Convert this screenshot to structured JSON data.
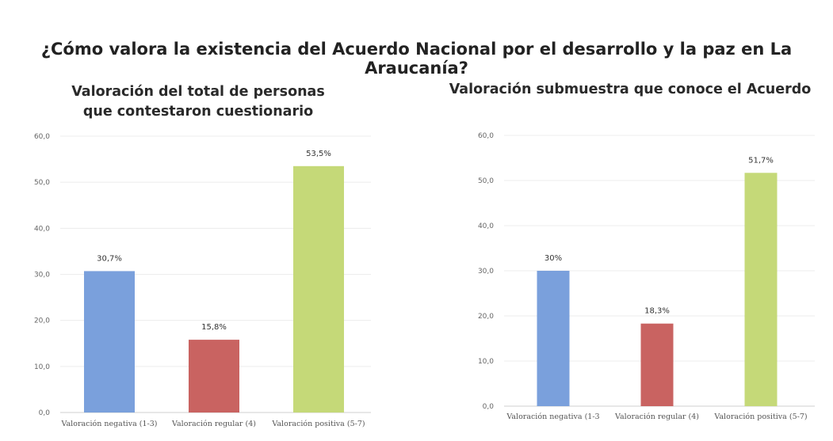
{
  "title": "¿Cómo valora la existencia del Acuerdo Nacional por el desarrollo y la paz en La Araucanía?",
  "chart_data": [
    {
      "type": "bar",
      "title": "Valoración del total de personas\nque contestaron cuestionario",
      "categories": [
        "Valoración negativa (1-3)",
        "Valoración regular (4)",
        "Valoración positiva (5-7)"
      ],
      "values": [
        30.7,
        15.8,
        53.5
      ],
      "data_labels": [
        "30,7%",
        "15,8%",
        "53,5%"
      ],
      "colors": [
        "#7aa0dc",
        "#c96361",
        "#c5d978"
      ],
      "ylim": [
        0,
        60
      ],
      "yticks": [
        "0,0",
        "10,0",
        "20,0",
        "30,0",
        "40,0",
        "50,0",
        "60,0"
      ],
      "grid": true
    },
    {
      "type": "bar",
      "title": "Valoración submuestra que conoce el Acuerdo",
      "categories": [
        "Valoración negativa (1-3",
        "Valoración regular (4)",
        "Valoración positiva (5-7)"
      ],
      "values": [
        30,
        18.3,
        51.7
      ],
      "data_labels": [
        "30%",
        "18,3%",
        "51,7%"
      ],
      "colors": [
        "#7aa0dc",
        "#c96361",
        "#c5d978"
      ],
      "ylim": [
        0,
        60
      ],
      "yticks": [
        "0,0",
        "10,0",
        "20,0",
        "30,0",
        "40,0",
        "50,0",
        "60,0"
      ],
      "grid": true
    }
  ]
}
